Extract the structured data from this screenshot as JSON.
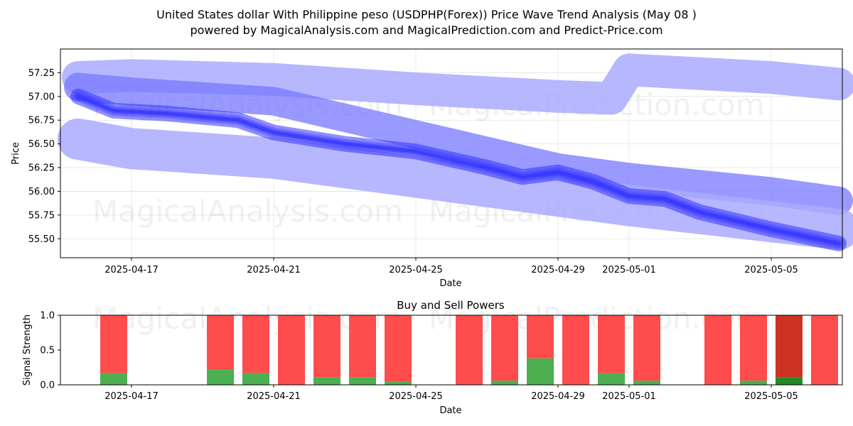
{
  "chart_data": [
    {
      "type": "line",
      "title": "United States dollar With Philippine peso (USDPHP(Forex)) Price Wave Trend Analysis (May 08 )",
      "subtitle": "powered by MagicalAnalysis.com and MagicalPrediction.com and Predict-Price.com",
      "xlabel": "Date",
      "ylabel": "Price",
      "xlim": [
        "2025-04-15",
        "2025-05-07"
      ],
      "ylim": [
        55.3,
        57.5
      ],
      "x_ticks": [
        "2025-04-17",
        "2025-04-21",
        "2025-04-25",
        "2025-04-29",
        "2025-05-01",
        "2025-05-05"
      ],
      "y_ticks": [
        "55.50",
        "55.75",
        "56.00",
        "56.25",
        "56.50",
        "56.75",
        "57.00",
        "57.25"
      ],
      "grid": true,
      "colors": {
        "band_light": "#aaaaff",
        "band_mid": "#7777ff",
        "band_core": "#3333ff"
      },
      "series": [
        {
          "x": [
            "2025-04-15.5",
            "2025-04-17",
            "2025-04-21",
            "2025-04-25",
            "2025-04-29",
            "2025-04-30.5",
            "2025-05-01",
            "2025-05-05",
            "2025-05-06.9"
          ],
          "values": [
            57.2,
            57.22,
            57.18,
            57.08,
            57.0,
            56.98,
            57.28,
            57.2,
            57.13
          ]
        },
        {
          "x": [
            "2025-04-15.5",
            "2025-04-17",
            "2025-04-21",
            "2025-04-25",
            "2025-04-29",
            "2025-05-01",
            "2025-05-05",
            "2025-05-06.9"
          ],
          "values": [
            57.1,
            57.05,
            56.95,
            56.6,
            56.25,
            56.15,
            56.0,
            55.9
          ]
        },
        {
          "x": [
            "2025-04-15.5",
            "2025-04-17",
            "2025-04-21",
            "2025-04-25",
            "2025-04-29",
            "2025-05-01",
            "2025-05-05",
            "2025-05-06.9"
          ],
          "values": [
            56.55,
            56.45,
            56.35,
            56.15,
            55.95,
            55.85,
            55.68,
            55.6
          ]
        },
        {
          "x": [
            "2025-04-15.5",
            "2025-04-16.5",
            "2025-04-18",
            "2025-04-20",
            "2025-04-21",
            "2025-04-23",
            "2025-04-25",
            "2025-04-27",
            "2025-04-28",
            "2025-04-29",
            "2025-04-30",
            "2025-05-01",
            "2025-05-02",
            "2025-05-03",
            "2025-05-05",
            "2025-05-06.9"
          ],
          "values": [
            57.0,
            56.85,
            56.82,
            56.75,
            56.62,
            56.5,
            56.42,
            56.25,
            56.15,
            56.2,
            56.1,
            55.95,
            55.92,
            55.78,
            55.6,
            55.45
          ]
        }
      ]
    },
    {
      "type": "bar",
      "title": "Buy and Sell Powers",
      "xlabel": "Date",
      "ylabel": "Signal Strength",
      "ylim": [
        0.0,
        1.0
      ],
      "y_ticks": [
        "0.0",
        "0.5",
        "1.0"
      ],
      "x_ticks": [
        "2025-04-17",
        "2025-04-21",
        "2025-04-25",
        "2025-04-29",
        "2025-05-01",
        "2025-05-05"
      ],
      "colors": {
        "buy": "#4caf50",
        "sell": "#ff4c4c",
        "buy_dark": "#228b22",
        "sell_dark": "#cc3322"
      },
      "categories": [
        "2025-04-16.5",
        "2025-04-19.5",
        "2025-04-20.5",
        "2025-04-21.5",
        "2025-04-22.5",
        "2025-04-23.5",
        "2025-04-24.5",
        "2025-04-26.5",
        "2025-04-27.5",
        "2025-04-28.5",
        "2025-04-29.5",
        "2025-04-30.5",
        "2025-05-01.5",
        "2025-05-03.5",
        "2025-05-04.5",
        "2025-05-05.5",
        "2025-05-06.5"
      ],
      "buy": [
        0.17,
        0.22,
        0.17,
        0.0,
        0.11,
        0.11,
        0.05,
        0.0,
        0.06,
        0.38,
        0.0,
        0.17,
        0.06,
        0.0,
        0.06,
        0.11,
        0.0
      ],
      "sell": [
        0.83,
        0.78,
        0.83,
        1.0,
        0.89,
        0.89,
        0.95,
        1.0,
        0.94,
        0.62,
        1.0,
        0.83,
        0.94,
        1.0,
        0.94,
        0.89,
        1.0
      ],
      "highlight_index": 15
    }
  ],
  "watermarks": [
    "MagicalAnalysis.com",
    "MagicalPrediction.com"
  ]
}
